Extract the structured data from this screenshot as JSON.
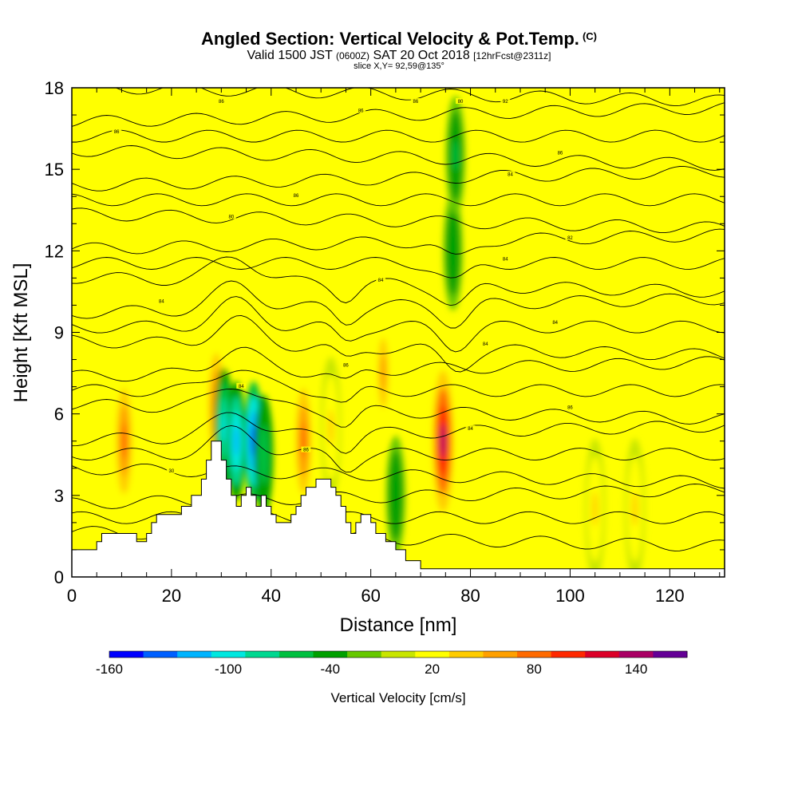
{
  "header": {
    "title_main": "Angled Section: Vertical Velocity & Pot.Temp.",
    "title_mark": "(C)",
    "valid_prefix": "Valid 1500 JST",
    "valid_zulu": "(0600Z)",
    "valid_date": "SAT 20 Oct 2018",
    "forecast": "[12hrFcst@2311z]",
    "slice": "slice X,Y= 92,59@135°"
  },
  "chart_data": {
    "type": "heatmap",
    "xlabel": "Distance [nm]",
    "ylabel": "Height [Kft MSL]",
    "xlim": [
      0,
      131
    ],
    "ylim": [
      0,
      18
    ],
    "x_ticks": [
      0,
      20,
      40,
      60,
      80,
      100,
      120
    ],
    "y_ticks": [
      0,
      3,
      6,
      9,
      12,
      15,
      18
    ],
    "background_value": 20,
    "colorbar": {
      "title": "Vertical Velocity [cm/s]",
      "tick_labels": [
        "-160",
        "-100",
        "-40",
        "20",
        "80",
        "140"
      ],
      "levels": [
        -160,
        -140,
        -120,
        -100,
        -80,
        -60,
        -40,
        -20,
        0,
        20,
        40,
        60,
        80,
        100,
        120,
        140,
        160
      ],
      "colors": [
        "#0000ff",
        "#0060ff",
        "#00b4ff",
        "#00e8e0",
        "#00d890",
        "#00c040",
        "#00a000",
        "#66c800",
        "#c8e600",
        "#ffff00",
        "#ffcc00",
        "#ffa000",
        "#ff6a00",
        "#ff2800",
        "#dc0028",
        "#aa0064",
        "#640096"
      ]
    },
    "terrain": [
      [
        0,
        1.0
      ],
      [
        5,
        1.0
      ],
      [
        5,
        1.3
      ],
      [
        6,
        1.3
      ],
      [
        6,
        1.6
      ],
      [
        13,
        1.6
      ],
      [
        13,
        1.3
      ],
      [
        15,
        1.3
      ],
      [
        15,
        1.6
      ],
      [
        16,
        1.6
      ],
      [
        16,
        2.0
      ],
      [
        17,
        2.0
      ],
      [
        17,
        2.3
      ],
      [
        22,
        2.3
      ],
      [
        22,
        2.6
      ],
      [
        24,
        2.6
      ],
      [
        24,
        3.0
      ],
      [
        26,
        3.0
      ],
      [
        26,
        3.6
      ],
      [
        27,
        3.6
      ],
      [
        27,
        4.3
      ],
      [
        28,
        4.3
      ],
      [
        28,
        5.0
      ],
      [
        30,
        5.0
      ],
      [
        30,
        4.3
      ],
      [
        31,
        4.3
      ],
      [
        31,
        3.6
      ],
      [
        32,
        3.6
      ],
      [
        32,
        3.0
      ],
      [
        33,
        3.0
      ],
      [
        33,
        2.6
      ],
      [
        34,
        2.6
      ],
      [
        34,
        3.0
      ],
      [
        35,
        3.0
      ],
      [
        35,
        3.3
      ],
      [
        36,
        3.3
      ],
      [
        36,
        3.0
      ],
      [
        37,
        3.0
      ],
      [
        37,
        2.6
      ],
      [
        38,
        2.6
      ],
      [
        38,
        3.0
      ],
      [
        39,
        3.0
      ],
      [
        39,
        2.6
      ],
      [
        40,
        2.6
      ],
      [
        40,
        2.3
      ],
      [
        41,
        2.3
      ],
      [
        41,
        2.0
      ],
      [
        44,
        2.0
      ],
      [
        44,
        2.3
      ],
      [
        45,
        2.3
      ],
      [
        45,
        2.6
      ],
      [
        46,
        2.6
      ],
      [
        46,
        3.0
      ],
      [
        47,
        3.0
      ],
      [
        47,
        3.3
      ],
      [
        49,
        3.3
      ],
      [
        49,
        3.6
      ],
      [
        52,
        3.6
      ],
      [
        52,
        3.3
      ],
      [
        53,
        3.3
      ],
      [
        53,
        3.0
      ],
      [
        54,
        3.0
      ],
      [
        54,
        2.6
      ],
      [
        55,
        2.6
      ],
      [
        55,
        2.0
      ],
      [
        56,
        2.0
      ],
      [
        56,
        1.6
      ],
      [
        57,
        1.6
      ],
      [
        57,
        2.0
      ],
      [
        58,
        2.0
      ],
      [
        58,
        2.3
      ],
      [
        60,
        2.3
      ],
      [
        60,
        2.0
      ],
      [
        61,
        2.0
      ],
      [
        61,
        1.6
      ],
      [
        63,
        1.6
      ],
      [
        63,
        1.3
      ],
      [
        65,
        1.3
      ],
      [
        65,
        1.0
      ],
      [
        67,
        1.0
      ],
      [
        67,
        0.6
      ],
      [
        70,
        0.6
      ],
      [
        70,
        0.3
      ],
      [
        131,
        0.3
      ]
    ],
    "theta_contour_labels": [
      "30",
      "86",
      "84",
      "86",
      "84",
      "86",
      "84",
      "84",
      "84",
      "84",
      "84",
      "82",
      "80",
      "86",
      "84",
      "86",
      "86",
      "86",
      "86",
      "86",
      "92",
      "80"
    ],
    "velocity_features": [
      {
        "x": 10.5,
        "y": 5.0,
        "value": 90
      },
      {
        "x": 29.0,
        "y": 6.3,
        "value": 80
      },
      {
        "x": 30.5,
        "y": 5.5,
        "value": -90
      },
      {
        "x": 33.0,
        "y": 5.0,
        "value": -110
      },
      {
        "x": 36.5,
        "y": 5.0,
        "value": -150
      },
      {
        "x": 38.5,
        "y": 4.5,
        "value": -60
      },
      {
        "x": 46.5,
        "y": 5.0,
        "value": 95
      },
      {
        "x": 52.0,
        "y": 5.5,
        "value": 50
      },
      {
        "x": 62.5,
        "y": 7.5,
        "value": 60
      },
      {
        "x": 65.0,
        "y": 3.0,
        "value": -40
      },
      {
        "x": 74.5,
        "y": 5.0,
        "value": 150
      },
      {
        "x": 76.5,
        "y": 12.0,
        "value": -40
      },
      {
        "x": 77.0,
        "y": 15.5,
        "value": -45
      },
      {
        "x": 105.0,
        "y": 2.5,
        "value": 50
      },
      {
        "x": 113.0,
        "y": 2.5,
        "value": 50
      }
    ]
  }
}
